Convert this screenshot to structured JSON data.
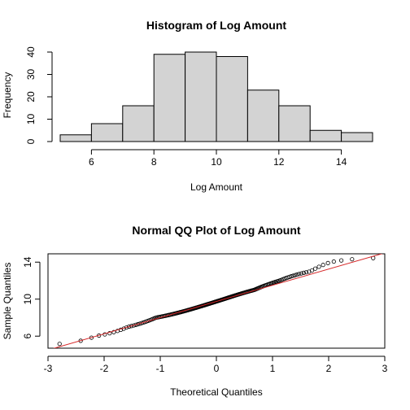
{
  "chart_data": [
    {
      "type": "bar",
      "title": "Histogram of Log Amount",
      "xlabel": "Log Amount",
      "ylabel": "Frequency",
      "bins": [
        {
          "from": 5,
          "to": 6,
          "count": 3
        },
        {
          "from": 6,
          "to": 7,
          "count": 8
        },
        {
          "from": 7,
          "to": 8,
          "count": 16
        },
        {
          "from": 8,
          "to": 9,
          "count": 39
        },
        {
          "from": 9,
          "to": 10,
          "count": 40
        },
        {
          "from": 10,
          "to": 11,
          "count": 38
        },
        {
          "from": 11,
          "to": 12,
          "count": 23
        },
        {
          "from": 12,
          "to": 13,
          "count": 16
        },
        {
          "from": 13,
          "to": 14,
          "count": 5
        },
        {
          "from": 14,
          "to": 15,
          "count": 4
        }
      ],
      "xticks": [
        "6",
        "8",
        "10",
        "12",
        "14"
      ],
      "yticks": [
        "0",
        "10",
        "20",
        "30",
        "40"
      ],
      "xlim": [
        5,
        15
      ],
      "ylim": [
        0,
        40
      ],
      "bar_color": "#d3d3d3"
    },
    {
      "type": "scatter",
      "title": "Normal QQ Plot of Log Amount",
      "xlabel": "Theoretical Quantiles",
      "ylabel": "Sample Quantiles",
      "xticks": [
        "-3",
        "-2",
        "-1",
        "0",
        "1",
        "2",
        "3"
      ],
      "yticks": [
        "6",
        "10",
        "14"
      ],
      "xlim": [
        -3,
        3
      ],
      "ylim": [
        4.7,
        14.9
      ],
      "n_points": 192,
      "quantile_knots": [
        {
          "p": 0.0,
          "q": 5.0
        },
        {
          "p": 0.0156,
          "q": 6.0
        },
        {
          "p": 0.0573,
          "q": 7.0
        },
        {
          "p": 0.1406,
          "q": 8.0
        },
        {
          "p": 0.3438,
          "q": 9.0
        },
        {
          "p": 0.5521,
          "q": 10.0
        },
        {
          "p": 0.75,
          "q": 11.0
        },
        {
          "p": 0.8698,
          "q": 12.0
        },
        {
          "p": 0.9531,
          "q": 13.0
        },
        {
          "p": 0.9792,
          "q": 14.0
        },
        {
          "p": 1.0,
          "q": 14.5
        }
      ],
      "reference_line": {
        "intercept": 9.75,
        "slope": 1.75,
        "color": "#d62728"
      }
    }
  ]
}
